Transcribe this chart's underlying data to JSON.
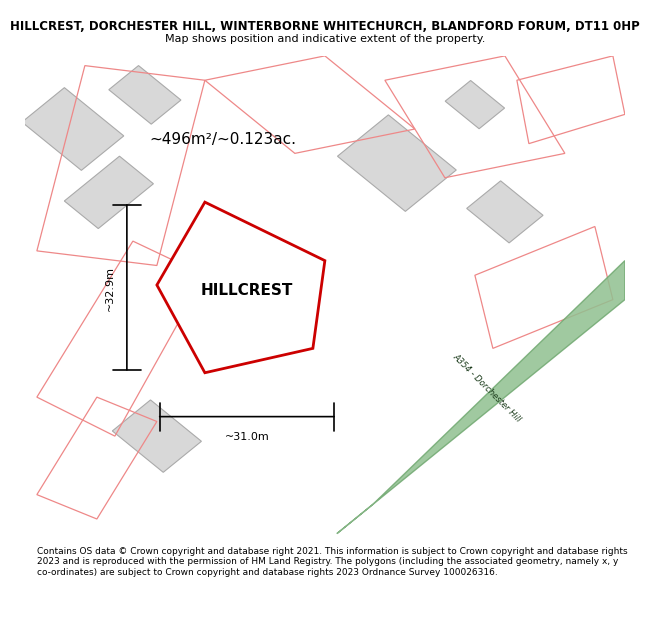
{
  "title_line1": "HILLCREST, DORCHESTER HILL, WINTERBORNE WHITECHURCH, BLANDFORD FORUM, DT11 0HP",
  "title_line2": "Map shows position and indicative extent of the property.",
  "footer": "Contains OS data © Crown copyright and database right 2021. This information is subject to Crown copyright and database rights 2023 and is reproduced with the permission of HM Land Registry. The polygons (including the associated geometry, namely x, y co-ordinates) are subject to Crown copyright and database rights 2023 Ordnance Survey 100026316.",
  "area_label": "~496m²/~0.123ac.",
  "property_name": "HILLCREST",
  "dim_height": "~32.9m",
  "dim_width": "~31.0m",
  "road_label": "A354 - Dorchester Hill",
  "bg_color": "#f5f5f5",
  "map_bg": "#ffffff",
  "plot_outline_color": "#cc0000",
  "plot_fill_color": "#ffffff",
  "road_color": "#90c090",
  "road_stroke": "#70a870",
  "building_fill": "#d8d8d8",
  "building_stroke": "#aaaaaa",
  "other_plot_color": "#ffcccc",
  "other_plot_stroke": "#ee8888",
  "dim_color": "#000000",
  "text_color": "#000000"
}
